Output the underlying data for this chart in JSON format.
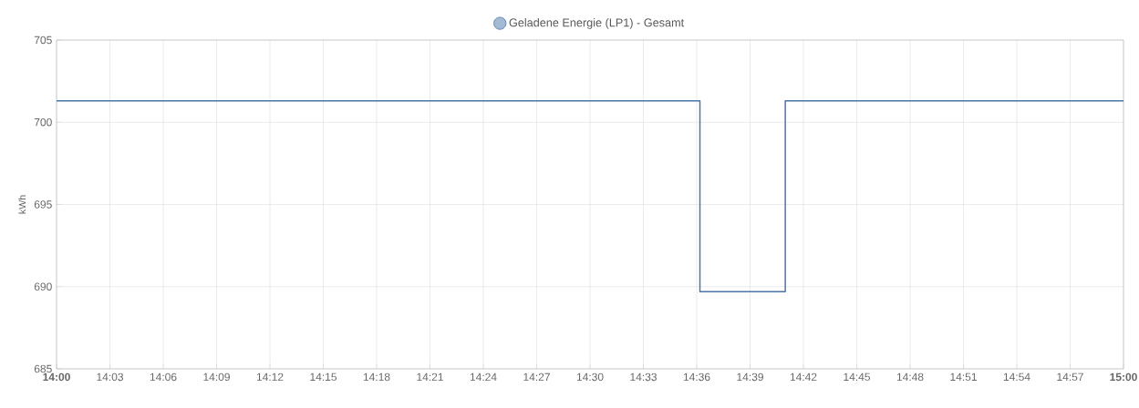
{
  "chart_data": {
    "type": "step",
    "ylabel": "kWh",
    "x": [
      14.0,
      14.603,
      14.683,
      15.0
    ],
    "series": [
      {
        "name": "Geladene Energie (LP1) - Gesamt",
        "color": "#4a74a6",
        "values": [
          701.3,
          689.7,
          701.3,
          701.3
        ]
      }
    ],
    "xlim": [
      14.0,
      15.0
    ],
    "xticks": [
      {
        "value": 14.0,
        "label": "14:00"
      },
      {
        "value": 14.05,
        "label": "14:03"
      },
      {
        "value": 14.1,
        "label": "14:06"
      },
      {
        "value": 14.15,
        "label": "14:09"
      },
      {
        "value": 14.2,
        "label": "14:12"
      },
      {
        "value": 14.25,
        "label": "14:15"
      },
      {
        "value": 14.3,
        "label": "14:18"
      },
      {
        "value": 14.35,
        "label": "14:21"
      },
      {
        "value": 14.4,
        "label": "14:24"
      },
      {
        "value": 14.45,
        "label": "14:27"
      },
      {
        "value": 14.5,
        "label": "14:30"
      },
      {
        "value": 14.55,
        "label": "14:33"
      },
      {
        "value": 14.6,
        "label": "14:36"
      },
      {
        "value": 14.65,
        "label": "14:39"
      },
      {
        "value": 14.7,
        "label": "14:42"
      },
      {
        "value": 14.75,
        "label": "14:45"
      },
      {
        "value": 14.8,
        "label": "14:48"
      },
      {
        "value": 14.85,
        "label": "14:51"
      },
      {
        "value": 14.9,
        "label": "14:54"
      },
      {
        "value": 14.95,
        "label": "14:57"
      },
      {
        "value": 15.0,
        "label": "15:00"
      }
    ],
    "ylim": [
      685,
      705
    ],
    "yticks": [
      685,
      690,
      695,
      700,
      705
    ],
    "grid": true,
    "legend": "top",
    "marker": "none",
    "line_style": "solid"
  }
}
